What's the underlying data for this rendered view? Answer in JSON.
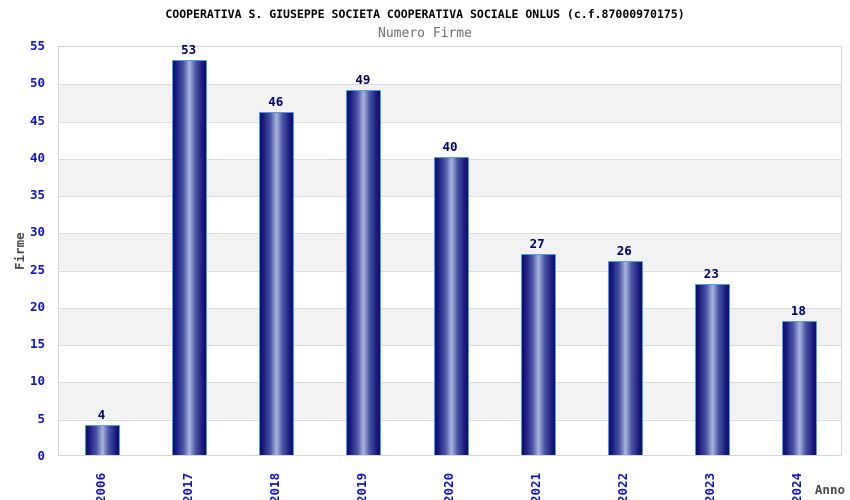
{
  "header": {
    "title": "COOPERATIVA S. GIUSEPPE SOCIETA COOPERATIVA SOCIALE ONLUS (c.f.87000970175)",
    "subtitle": "Numero Firme"
  },
  "chart_data": {
    "type": "bar",
    "title": "COOPERATIVA S. GIUSEPPE SOCIETA COOPERATIVA SOCIALE ONLUS (c.f.87000970175)",
    "subtitle": "Numero Firme",
    "categories": [
      "2006",
      "2017",
      "2018",
      "2019",
      "2020",
      "2021",
      "2022",
      "2023",
      "2024"
    ],
    "values": [
      4,
      53,
      46,
      49,
      40,
      27,
      26,
      23,
      18
    ],
    "xlabel": "Anno",
    "ylabel": "Firme",
    "ylim": [
      0,
      55
    ],
    "ytick_step": 5,
    "yticks": [
      0,
      5,
      10,
      15,
      20,
      25,
      30,
      35,
      40,
      45,
      50,
      55
    ],
    "grid": true,
    "legend_position": "none",
    "background_bands": "alternating white / light-gray horizontal bands every 5 units",
    "colors": {
      "bar_dark": "#0d0d6b",
      "bar_mid": "#4a57a5",
      "bar_light": "#a9b5dc",
      "bar_border": "#4aa0e8",
      "value_label": "#00006b",
      "tick_label": "#1212cc",
      "axis_title": "#4a4a4a",
      "title": "#000000",
      "subtitle": "#6e6e6e",
      "band_gray": "#f2f2f2",
      "gridline": "#dddddd"
    }
  }
}
